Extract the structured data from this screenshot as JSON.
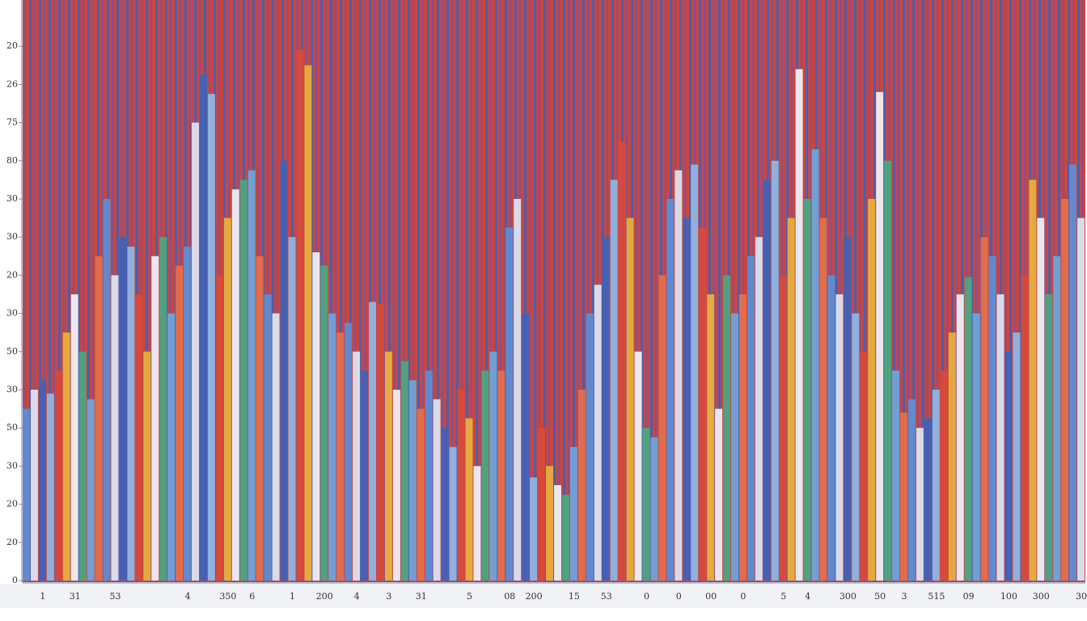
{
  "chart_data": {
    "type": "bar",
    "categories": [
      null,
      null,
      "1",
      null,
      null,
      null,
      "31",
      null,
      null,
      null,
      null,
      "53",
      null,
      null,
      null,
      null,
      null,
      null,
      null,
      null,
      "4",
      null,
      null,
      null,
      null,
      "350",
      null,
      null,
      "6",
      null,
      null,
      null,
      null,
      "1",
      null,
      null,
      null,
      "200",
      null,
      null,
      null,
      "4",
      null,
      null,
      null,
      "3",
      null,
      null,
      null,
      "31",
      null,
      null,
      null,
      null,
      null,
      "5",
      null,
      null,
      null,
      null,
      "08",
      null,
      null,
      "200",
      null,
      null,
      null,
      null,
      "15",
      null,
      null,
      null,
      "53",
      null,
      null,
      null,
      null,
      "0",
      null,
      null,
      null,
      "0",
      null,
      null,
      null,
      "00",
      null,
      null,
      null,
      "0",
      null,
      null,
      null,
      null,
      "5",
      null,
      null,
      "4",
      null,
      null,
      null,
      null,
      "300",
      null,
      null,
      null,
      "50",
      null,
      null,
      "3",
      null,
      null,
      null,
      "515",
      null,
      null,
      null,
      "09",
      null,
      null,
      null,
      null,
      "100",
      null,
      null,
      null,
      "300",
      null,
      null,
      null,
      null,
      "30"
    ],
    "values": [
      90,
      100,
      105,
      98,
      110,
      130,
      150,
      120,
      95,
      170,
      200,
      160,
      180,
      175,
      150,
      120,
      170,
      180,
      140,
      165,
      175,
      240,
      265,
      255,
      160,
      190,
      205,
      210,
      215,
      170,
      150,
      140,
      220,
      180,
      278,
      270,
      172,
      165,
      140,
      130,
      135,
      120,
      110,
      146,
      145,
      120,
      100,
      115,
      105,
      90,
      110,
      95,
      80,
      70,
      100,
      85,
      60,
      110,
      120,
      110,
      185,
      200,
      140,
      54,
      80,
      60,
      50,
      45,
      70,
      100,
      140,
      155,
      180,
      210,
      230,
      190,
      120,
      80,
      75,
      160,
      200,
      215,
      190,
      218,
      185,
      150,
      90,
      160,
      140,
      150,
      170,
      180,
      210,
      220,
      160,
      190,
      268,
      200,
      226,
      190,
      160,
      150,
      180,
      140,
      120,
      200,
      256,
      220,
      110,
      88,
      95,
      80,
      85,
      100,
      110,
      130,
      150,
      159,
      140,
      180,
      170,
      150,
      120,
      130,
      160,
      210,
      190,
      150,
      170,
      200,
      218,
      190
    ],
    "colors": [
      "#5b8fd6",
      "#dfe6f3",
      "#3f63b8",
      "#8fb8e6",
      "#d94a3a",
      "#e9b23c",
      "#f2f4f8",
      "#4aa882",
      "#6ea6dd",
      "#e6704a"
    ],
    "ylim": [
      0,
      300
    ],
    "yticks": [
      0,
      20,
      {
        "value": 40,
        "label": "20"
      },
      {
        "value": 60,
        "label": "30"
      },
      {
        "value": 80,
        "label": "50"
      },
      {
        "value": 100,
        "label": "30"
      },
      {
        "value": 120,
        "label": "50"
      },
      {
        "value": 140,
        "label": "30"
      },
      {
        "value": 160,
        "label": "20"
      },
      {
        "value": 180,
        "label": "30"
      },
      {
        "value": 200,
        "label": "30"
      },
      {
        "value": 220,
        "label": "80"
      },
      {
        "value": 240,
        "label": "75"
      },
      {
        "value": 260,
        "label": "26"
      },
      {
        "value": 280,
        "label": "20"
      }
    ]
  }
}
